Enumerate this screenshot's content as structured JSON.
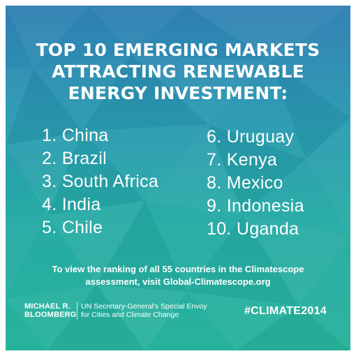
{
  "title_lines": [
    "TOP 10 EMERGING MARKETS",
    "ATTRACTING RENEWABLE",
    "ENERGY INVESTMENT:"
  ],
  "ranking_left": [
    "1. China",
    "2. Brazil",
    "3. South Africa",
    "4. India",
    "5. Chile"
  ],
  "ranking_right": [
    "6. Uruguay",
    "7. Kenya",
    "8. Mexico",
    "9. Indonesia",
    "10. Uganda"
  ],
  "note_lines": [
    "To view the ranking of all 55 countries in the Climatescope",
    "assessment, visit Global-Climatescope.org"
  ],
  "footer": {
    "name_lines": [
      "MICHAEL R.",
      "BLOOMBERG"
    ],
    "role_lines": [
      "UN Secretary-General's Special Envoy",
      "for Cities and Climate Change"
    ],
    "hashtag": "#CLIMATE2014"
  },
  "colors": {
    "background_top": "#2f7fb3",
    "background_bottom": "#27b39b",
    "text": "#ffffff"
  }
}
